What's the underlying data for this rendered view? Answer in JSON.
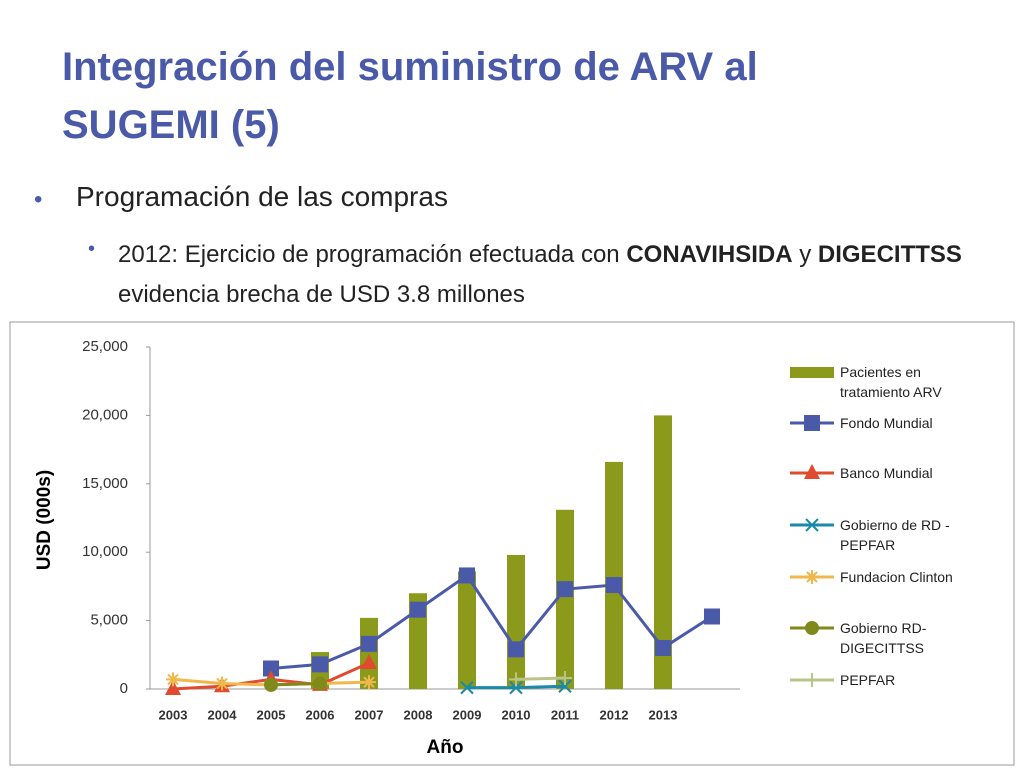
{
  "title": "Integración del suministro de ARV al SUGEMI (5)",
  "bullet": "Programación de las compras",
  "sub_bullet": [
    {
      "text": "2012: Ejercicio de programación efectuada con ",
      "bold": false
    },
    {
      "text": "CONAVIHSIDA",
      "bold": true
    },
    {
      "text": " y ",
      "bold": false
    },
    {
      "text": "DIGECITTSS",
      "bold": true
    },
    {
      "text": "  evidencia brecha de USD 3.8 millones",
      "bold": false
    }
  ],
  "chart_data": {
    "type": "bar",
    "categories": [
      "2003",
      "2004",
      "2005",
      "2006",
      "2007",
      "2008",
      "2009",
      "2010",
      "2011",
      "2012",
      "2013",
      null
    ],
    "ylabel": "USD (000s)",
    "xlabel": "Año",
    "ylim": [
      0,
      25000
    ],
    "yticks": [
      0,
      {
        "value": 5000,
        "label": "5,000"
      },
      {
        "value": 10000,
        "label": "10,000"
      },
      {
        "value": 15000,
        "label": "15,000"
      },
      {
        "value": 20000,
        "label": "20,000"
      },
      {
        "value": 25000,
        "label": "25,000"
      }
    ],
    "grid": false,
    "legend": "right",
    "series": [
      {
        "name": "Pacientes en tratamiento ARV",
        "type": "bar",
        "color": "#8c9a1b",
        "values": [
          null,
          null,
          null,
          2700,
          5200,
          7000,
          8600,
          9800,
          13100,
          16600,
          20000,
          null
        ]
      },
      {
        "name": "Fondo Mundial",
        "type": "line",
        "marker": "square",
        "color": "#4a5aa8",
        "values": [
          null,
          null,
          1500,
          1800,
          3300,
          5800,
          8300,
          2900,
          7300,
          7600,
          3000,
          5300
        ]
      },
      {
        "name": "Banco Mundial",
        "type": "line",
        "marker": "triangle",
        "color": "#e04a2e",
        "values": [
          0,
          200,
          700,
          300,
          1900,
          null,
          null,
          null,
          null,
          null,
          null,
          null
        ]
      },
      {
        "name": "Gobierno de RD - PEPFAR",
        "type": "line",
        "marker": "x",
        "color": "#1a8aa8",
        "values": [
          null,
          null,
          null,
          null,
          null,
          null,
          100,
          100,
          200,
          null,
          null,
          null
        ]
      },
      {
        "name": "Fundacion Clinton",
        "type": "line",
        "marker": "asterisk",
        "color": "#f0b84a",
        "values": [
          700,
          400,
          300,
          400,
          500,
          null,
          null,
          null,
          null,
          null,
          null,
          null
        ]
      },
      {
        "name": "Gobierno RD-DIGECITTSS",
        "type": "line",
        "marker": "circle",
        "color": "#7f8a1a",
        "values": [
          null,
          null,
          300,
          400,
          null,
          null,
          null,
          null,
          null,
          null,
          null,
          null
        ]
      },
      {
        "name": "PEPFAR",
        "type": "line",
        "marker": "plus",
        "color": "#b8c48a",
        "values": [
          null,
          null,
          null,
          null,
          null,
          null,
          null,
          700,
          800,
          null,
          null,
          null
        ]
      }
    ]
  }
}
